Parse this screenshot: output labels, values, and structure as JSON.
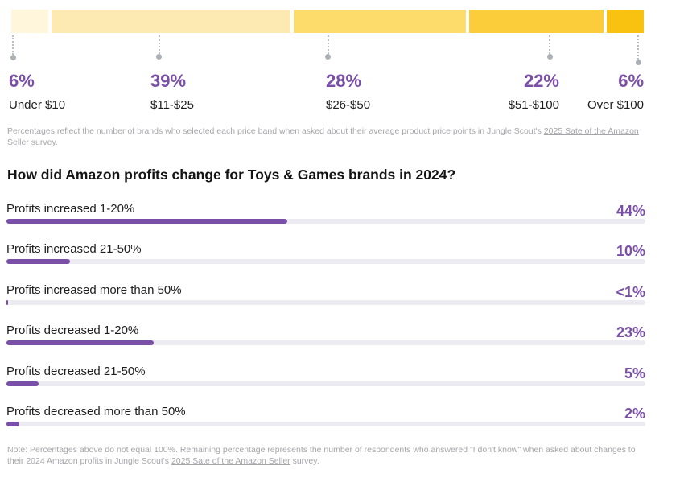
{
  "chart_data": [
    {
      "type": "bar",
      "orientation": "horizontal-stacked",
      "title": "",
      "categories": [
        "Under $10",
        "$11-$25",
        "$26-$50",
        "$51-$100",
        "Over $100"
      ],
      "values": [
        6,
        39,
        28,
        22,
        6
      ],
      "value_labels": [
        "6%",
        "39%",
        "28%",
        "22%",
        "6%"
      ],
      "colors": [
        "#fff6dc",
        "#fdeab2",
        "#fddc6b",
        "#fccd3b",
        "#f9c211"
      ],
      "footnote_lead": "Percentages reflect the number of brands who selected each price band when asked about their average product price points in Jungle Scout's ",
      "footnote_link": "2025 Sate of the Amazon Seller",
      "footnote_tail": " survey."
    },
    {
      "type": "bar",
      "orientation": "horizontal",
      "title": "How did Amazon profits change for Toys & Games brands in 2024?",
      "categories": [
        "Profits increased 1-20%",
        "Profits increased 21-50%",
        "Profits increased more than 50%",
        "Profits decreased 1-20%",
        "Profits decreased 21-50%",
        "Profits decreased more than 50%"
      ],
      "values": [
        44,
        10,
        0.3,
        23,
        5,
        2
      ],
      "value_labels": [
        "44%",
        "10%",
        "<1%",
        "23%",
        "5%",
        "2%"
      ],
      "xlim": [
        0,
        100
      ],
      "bar_color": "#7a4fa8",
      "track_color": "#ecebf1",
      "note_lead": "Note: Percentages above do not equal 100%. Remaining percentage represents the number of respondents who answered \"I don't know\" when asked about changes to their 2024 Amazon profits in Jungle Scout's ",
      "note_link": "2025 Sate of the Amazon Seller",
      "note_tail": " survey."
    }
  ]
}
